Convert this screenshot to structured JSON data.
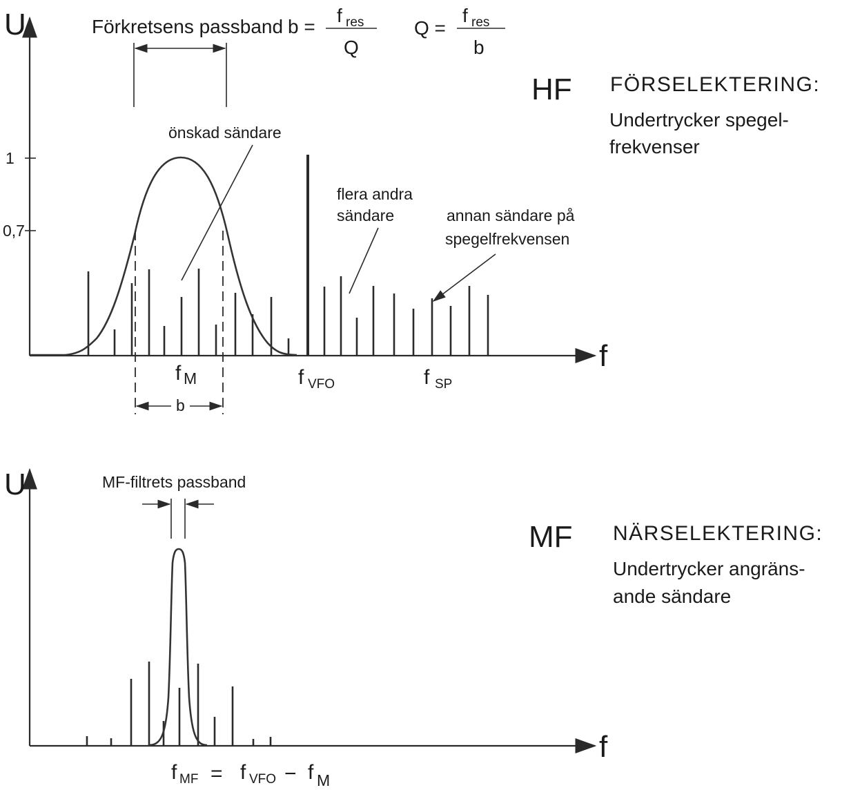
{
  "top": {
    "axis_y_label": "U",
    "axis_x_label": "f",
    "passband_label": "Förkretsens passband",
    "formula_b_lhs": "b =",
    "formula_b_num": "f",
    "formula_b_num_sub": "res",
    "formula_b_den": "Q",
    "formula_q_lhs": "Q =",
    "formula_q_num": "f",
    "formula_q_num_sub": "res",
    "formula_q_den": "b",
    "tick_1": "1",
    "tick_07": "0,7",
    "desired_label": "önskad sändare",
    "others_label_1": "flera andra",
    "others_label_2": "sändare",
    "image_label_1": "annan sändare på",
    "image_label_2": "spegelfrekvensen",
    "fM": "f",
    "fM_sub": "M",
    "fVFO": "f",
    "fVFO_sub": "VFO",
    "fSP": "f",
    "fSP_sub": "SP",
    "b_label": "b",
    "section_abbr": "HF",
    "section_title": "FÖRSELEKTERING:",
    "section_desc_1": "Undertrycker spegel-",
    "section_desc_2": "frekvenser"
  },
  "bottom": {
    "axis_y_label": "U",
    "axis_x_label": "f",
    "passband_label": "MF-filtrets passband",
    "formula_f": "f",
    "formula_sub_mf": "MF",
    "formula_eq": "=",
    "formula_f2": "f",
    "formula_sub_vfo": "VFO",
    "formula_minus": "−",
    "formula_f3": "f",
    "formula_sub_m": "M",
    "section_abbr": "MF",
    "section_title": "NÄRSELEKTERING:",
    "section_desc_1": "Undertrycker angräns-",
    "section_desc_2": "ande sändare"
  }
}
